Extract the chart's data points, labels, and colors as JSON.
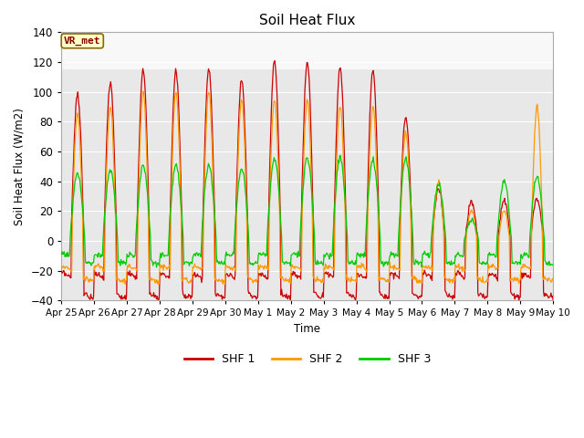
{
  "title": "Soil Heat Flux",
  "ylabel": "Soil Heat Flux (W/m2)",
  "xlabel": "Time",
  "ylim": [
    -40,
    140
  ],
  "shf1_color": "#cc0000",
  "shf2_color": "#ff9900",
  "shf3_color": "#00cc00",
  "legend_label1": "SHF 1",
  "legend_label2": "SHF 2",
  "legend_label3": "SHF 3",
  "watermark": "VR_met",
  "x_tick_labels": [
    "Apr 25",
    "Apr 26",
    "Apr 27",
    "Apr 28",
    "Apr 29",
    "Apr 30",
    "May 1",
    "May 2",
    "May 3",
    "May 4",
    "May 5",
    "May 6",
    "May 7",
    "May 8",
    "May 9",
    "May 10"
  ],
  "y_ticks": [
    -40,
    -20,
    0,
    20,
    40,
    60,
    80,
    100,
    120,
    140
  ],
  "figsize": [
    6.4,
    4.8
  ],
  "dpi": 100,
  "plot_bg_color": "#e8e8e8",
  "fig_bg_color": "#ffffff",
  "grid_color": "#ffffff",
  "upper_band_color": "#f0f0f0",
  "n_days": 15,
  "pts_per_day": 48
}
